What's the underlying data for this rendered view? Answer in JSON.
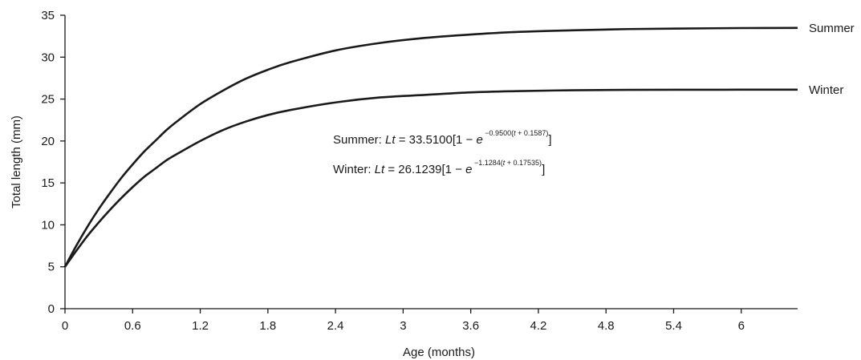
{
  "chart_data": {
    "type": "line",
    "title": "",
    "xlabel": "Age (months)",
    "ylabel": "Total length (mm)",
    "xlim": [
      0,
      6.5
    ],
    "ylim": [
      0,
      35
    ],
    "x_ticks": [
      "0",
      "0.6",
      "1.2",
      "1.8",
      "2.4",
      "3",
      "3.6",
      "4.2",
      "4.8",
      "5.4",
      "6"
    ],
    "y_ticks": [
      "0",
      "5",
      "10",
      "15",
      "20",
      "25",
      "30",
      "35"
    ],
    "grid": false,
    "legend": "none",
    "series": [
      {
        "name": "Summer",
        "color": "#1a1a1a",
        "x": [
          0,
          0.1,
          0.2,
          0.3,
          0.4,
          0.5,
          0.6,
          0.7,
          0.8,
          0.9,
          1.0,
          1.2,
          1.4,
          1.6,
          1.8,
          2.0,
          2.4,
          2.8,
          3.2,
          3.6,
          4.0,
          4.5,
          5.0,
          5.5,
          6.0,
          6.5
        ],
        "y": [
          5,
          7.5,
          9.8,
          11.9,
          13.8,
          15.6,
          17.2,
          18.7,
          20.0,
          21.3,
          22.4,
          24.4,
          26.0,
          27.4,
          28.5,
          29.4,
          30.8,
          31.7,
          32.3,
          32.7,
          33.0,
          33.2,
          33.35,
          33.42,
          33.47,
          33.49
        ]
      },
      {
        "name": "Winter",
        "color": "#1a1a1a",
        "x": [
          0,
          0.1,
          0.2,
          0.3,
          0.4,
          0.5,
          0.6,
          0.7,
          0.8,
          0.9,
          1.0,
          1.2,
          1.4,
          1.6,
          1.8,
          2.0,
          2.4,
          2.8,
          3.2,
          3.6,
          4.0,
          4.5,
          5.0,
          5.5,
          6.0,
          6.5
        ],
        "y": [
          5,
          6.9,
          8.7,
          10.3,
          11.8,
          13.2,
          14.5,
          15.7,
          16.7,
          17.7,
          18.5,
          20.0,
          21.3,
          22.3,
          23.1,
          23.7,
          24.6,
          25.2,
          25.5,
          25.8,
          25.95,
          26.05,
          26.1,
          26.11,
          26.12,
          26.12
        ]
      }
    ],
    "annotations": {
      "summer_eq": {
        "prefix": "Summer: ",
        "lhs": "Lt",
        "mid": " = 33.5100[1 − ",
        "base": "e",
        "sup_a": " −0.9500(",
        "sup_t": "t",
        "sup_b": " + 0.1587)",
        "close": "]"
      },
      "winter_eq": {
        "prefix": "Winter: ",
        "lhs": "Lt",
        "mid": " = 26.1239[1 − ",
        "base": "e",
        "sup_a": " −1.1284(",
        "sup_t": "t",
        "sup_b": " + 0.17535)",
        "close": "]"
      }
    }
  }
}
